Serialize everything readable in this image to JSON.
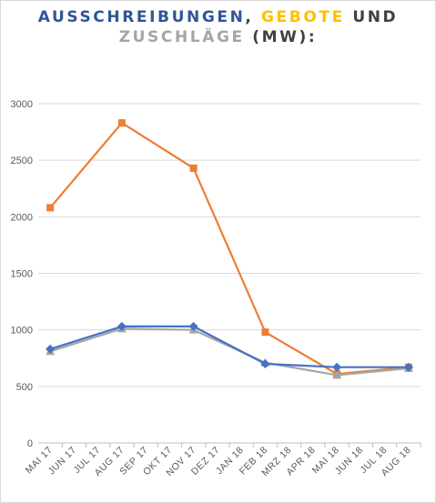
{
  "title": {
    "line1_part1": "AUSSCHREIBUNGEN",
    "line1_sep": ", ",
    "line1_part2": "GEBOTE",
    "line1_part3": " UND",
    "line2_part1": "ZUSCHLÄGE",
    "line2_part2": " (MW):"
  },
  "colors": {
    "ausschreibungen": "#2f5597",
    "gebote": "#ffc000",
    "zuschlaege": "#a5a5a5",
    "title_dark": "#404040",
    "series_ausschreibungen": "#4472c4",
    "series_gebote": "#ed7d31",
    "series_zuschlaege": "#a5a5a5"
  },
  "chart_data": {
    "type": "line",
    "categories": [
      "MAI 17",
      "JUN 17",
      "JUL 17",
      "AUG 17",
      "SEP 17",
      "OKT 17",
      "NOV 17",
      "DEZ 17",
      "JAN 18",
      "FEB 18",
      "MRZ 18",
      "APR 18",
      "MAI 18",
      "JUN 18",
      "JUL 18",
      "AUG 18"
    ],
    "ylim": [
      0,
      3000
    ],
    "yticks": [
      0,
      500,
      1000,
      1500,
      2000,
      2500,
      3000
    ],
    "grid": true,
    "series": [
      {
        "key": "ausschreibungen",
        "marker": "diamond",
        "values": [
          830,
          null,
          null,
          1030,
          null,
          null,
          1030,
          null,
          null,
          700,
          null,
          null,
          670,
          null,
          null,
          670
        ]
      },
      {
        "key": "gebote",
        "marker": "square",
        "values": [
          2080,
          null,
          null,
          2830,
          null,
          null,
          2430,
          null,
          null,
          980,
          null,
          null,
          610,
          null,
          null,
          670
        ]
      },
      {
        "key": "zuschlaege",
        "marker": "triangle",
        "values": [
          810,
          null,
          null,
          1010,
          null,
          null,
          1000,
          null,
          null,
          710,
          null,
          null,
          600,
          null,
          null,
          660
        ]
      }
    ]
  }
}
